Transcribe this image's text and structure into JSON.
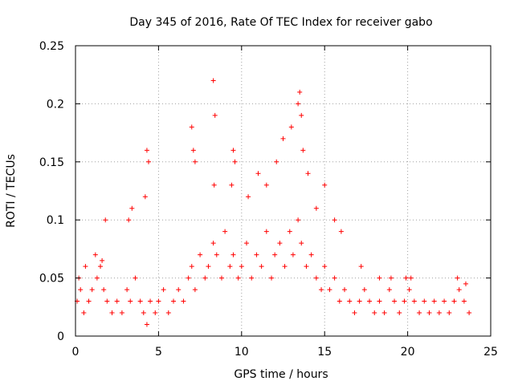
{
  "chart_data": {
    "type": "scatter",
    "title": "Day 345 of 2016, Rate Of TEC Index for receiver gabo",
    "xlabel": "GPS time / hours",
    "ylabel": "ROTI / TECUs",
    "xlim": [
      0,
      25
    ],
    "ylim": [
      0,
      0.25
    ],
    "x_ticks": [
      0,
      5,
      10,
      15,
      20,
      25
    ],
    "x_tick_labels": [
      "0",
      "5",
      "10",
      "15",
      "20",
      "25"
    ],
    "y_ticks": [
      0,
      0.05,
      0.1,
      0.15,
      0.2,
      0.25
    ],
    "y_tick_labels": [
      "0",
      "0.05",
      "0.1",
      "0.15",
      "0.2",
      "0.25"
    ],
    "grid": true,
    "marker": "+",
    "color": "#ff0000",
    "series": [
      {
        "x": [
          0.1,
          0.3,
          0.5,
          0.8,
          1.0,
          1.3,
          1.5,
          1.7,
          1.9,
          2.2,
          2.5,
          2.8,
          3.1,
          3.3,
          3.6,
          3.9,
          4.1,
          4.3,
          4.5,
          4.8,
          5.0,
          5.3,
          5.6,
          5.9,
          6.2,
          6.5,
          6.8,
          7.0,
          7.2,
          7.5,
          7.8,
          8.0,
          8.3,
          8.5,
          8.8,
          9.0,
          9.3,
          9.5,
          9.8,
          10.0,
          10.3,
          10.6,
          10.9,
          11.2,
          11.5,
          11.8,
          12.0,
          12.3,
          12.6,
          12.9,
          13.1,
          13.4,
          13.6,
          13.9,
          14.2,
          14.5,
          14.8,
          15.0,
          15.3,
          15.6,
          15.9,
          16.2,
          16.5,
          16.8,
          17.1,
          17.4,
          17.7,
          18.0,
          18.3,
          18.6,
          18.9,
          19.2,
          19.5,
          19.8,
          20.1,
          20.4,
          20.7,
          21.0,
          21.3,
          21.6,
          21.9,
          22.2,
          22.5,
          22.8,
          23.1,
          23.4,
          23.7,
          0.2,
          0.6,
          1.2,
          1.6,
          1.8,
          3.2,
          3.4,
          4.3,
          4.4,
          4.2,
          7.0,
          7.1,
          7.2,
          8.3,
          8.4,
          8.35,
          9.5,
          9.6,
          9.4,
          10.4,
          11.0,
          11.5,
          12.1,
          12.5,
          13.0,
          13.4,
          13.5,
          13.6,
          13.7,
          14.0,
          14.5,
          15.0,
          15.6,
          16.0,
          17.2,
          18.3,
          19.0,
          19.9,
          20.2,
          23.0,
          23.5
        ],
        "y": [
          0.03,
          0.04,
          0.02,
          0.03,
          0.04,
          0.05,
          0.06,
          0.04,
          0.03,
          0.02,
          0.03,
          0.02,
          0.04,
          0.03,
          0.05,
          0.03,
          0.02,
          0.01,
          0.03,
          0.02,
          0.03,
          0.04,
          0.02,
          0.03,
          0.04,
          0.03,
          0.05,
          0.06,
          0.04,
          0.07,
          0.05,
          0.06,
          0.08,
          0.07,
          0.05,
          0.09,
          0.06,
          0.07,
          0.05,
          0.06,
          0.08,
          0.05,
          0.07,
          0.06,
          0.09,
          0.05,
          0.07,
          0.08,
          0.06,
          0.09,
          0.07,
          0.1,
          0.08,
          0.06,
          0.07,
          0.05,
          0.04,
          0.06,
          0.04,
          0.05,
          0.03,
          0.04,
          0.03,
          0.02,
          0.03,
          0.04,
          0.03,
          0.02,
          0.03,
          0.02,
          0.04,
          0.03,
          0.02,
          0.03,
          0.04,
          0.03,
          0.02,
          0.03,
          0.02,
          0.03,
          0.02,
          0.03,
          0.02,
          0.03,
          0.04,
          0.03,
          0.02,
          0.05,
          0.06,
          0.07,
          0.065,
          0.1,
          0.1,
          0.11,
          0.16,
          0.15,
          0.12,
          0.18,
          0.16,
          0.15,
          0.22,
          0.19,
          0.13,
          0.16,
          0.15,
          0.13,
          0.12,
          0.14,
          0.13,
          0.15,
          0.17,
          0.18,
          0.2,
          0.21,
          0.19,
          0.16,
          0.14,
          0.11,
          0.13,
          0.1,
          0.09,
          0.06,
          0.05,
          0.05,
          0.05,
          0.05,
          0.05,
          0.045
        ]
      }
    ]
  }
}
